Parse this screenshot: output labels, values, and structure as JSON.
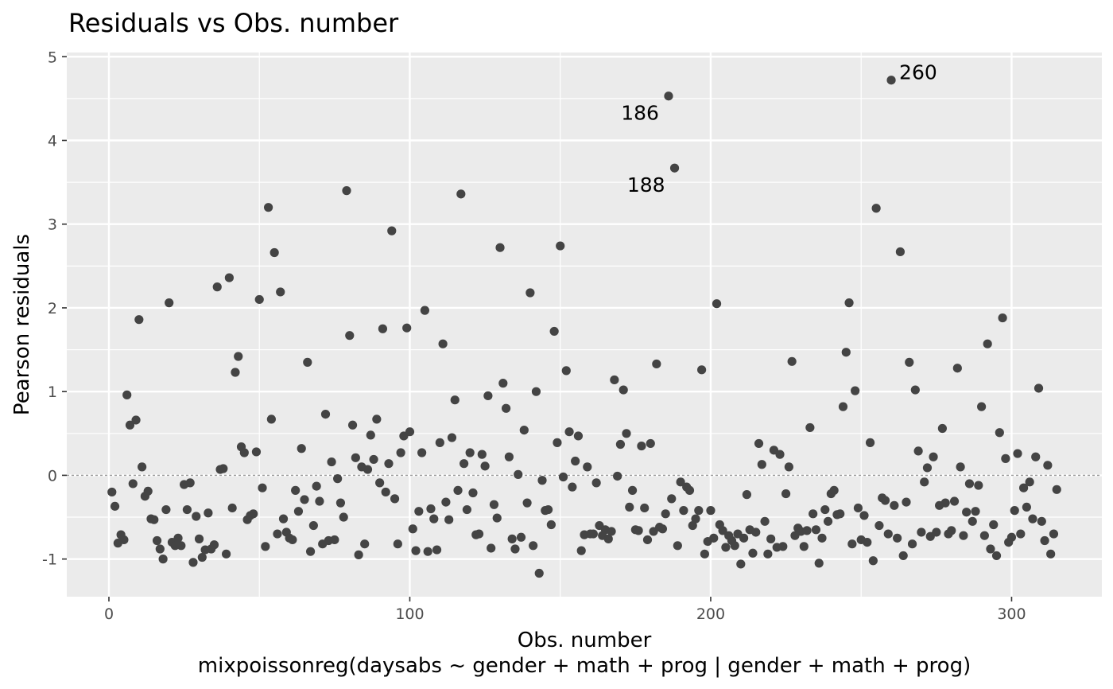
{
  "chart_data": {
    "type": "scatter",
    "title": "Residuals vs Obs. number",
    "xlabel": "Obs. number",
    "ylabel": "Pearson residuals",
    "caption": "mixpoissonreg(daysabs ~ gender + math + prog | gender + math + prog)",
    "xlim": [
      -14,
      330
    ],
    "ylim": [
      -1.45,
      5.05
    ],
    "x_ticks": [
      0,
      100,
      200,
      300
    ],
    "y_ticks": [
      -1,
      0,
      1,
      2,
      3,
      4,
      5
    ],
    "x_tick_labels": [
      "0",
      "100",
      "200",
      "300"
    ],
    "y_tick_labels": [
      "-1",
      "0",
      "1",
      "2",
      "3",
      "4",
      "5"
    ],
    "reference_line": 0,
    "grid": true,
    "panel_color": "#ebebeb",
    "point_color": "#444444",
    "points": [
      [
        1,
        -0.2
      ],
      [
        2,
        -0.37
      ],
      [
        3,
        -0.81
      ],
      [
        4,
        -0.71
      ],
      [
        5,
        -0.77
      ],
      [
        6,
        0.96
      ],
      [
        7,
        0.6
      ],
      [
        8,
        -0.1
      ],
      [
        9,
        0.66
      ],
      [
        10,
        1.86
      ],
      [
        11,
        0.1
      ],
      [
        12,
        -0.25
      ],
      [
        13,
        -0.19
      ],
      [
        14,
        -0.52
      ],
      [
        15,
        -0.53
      ],
      [
        16,
        -0.78
      ],
      [
        17,
        -0.88
      ],
      [
        18,
        -1.0
      ],
      [
        19,
        -0.41
      ],
      [
        20,
        2.06
      ],
      [
        21,
        -0.8
      ],
      [
        22,
        -0.84
      ],
      [
        23,
        -0.75
      ],
      [
        24,
        -0.84
      ],
      [
        25,
        -0.11
      ],
      [
        26,
        -0.41
      ],
      [
        27,
        -0.09
      ],
      [
        28,
        -1.04
      ],
      [
        29,
        -0.49
      ],
      [
        30,
        -0.76
      ],
      [
        31,
        -0.98
      ],
      [
        32,
        -0.89
      ],
      [
        33,
        -0.45
      ],
      [
        34,
        -0.88
      ],
      [
        35,
        -0.83
      ],
      [
        36,
        2.25
      ],
      [
        37,
        0.07
      ],
      [
        38,
        0.08
      ],
      [
        39,
        -0.94
      ],
      [
        40,
        2.36
      ],
      [
        41,
        -0.39
      ],
      [
        42,
        1.23
      ],
      [
        43,
        1.42
      ],
      [
        44,
        0.34
      ],
      [
        45,
        0.27
      ],
      [
        46,
        -0.53
      ],
      [
        47,
        -0.48
      ],
      [
        48,
        -0.46
      ],
      [
        49,
        0.28
      ],
      [
        50,
        2.1
      ],
      [
        51,
        -0.15
      ],
      [
        52,
        -0.85
      ],
      [
        53,
        3.2
      ],
      [
        54,
        0.67
      ],
      [
        55,
        2.66
      ],
      [
        56,
        -0.7
      ],
      [
        57,
        2.19
      ],
      [
        58,
        -0.52
      ],
      [
        59,
        -0.68
      ],
      [
        60,
        -0.75
      ],
      [
        61,
        -0.77
      ],
      [
        62,
        -0.18
      ],
      [
        63,
        -0.43
      ],
      [
        64,
        0.32
      ],
      [
        65,
        -0.29
      ],
      [
        66,
        1.35
      ],
      [
        67,
        -0.91
      ],
      [
        68,
        -0.6
      ],
      [
        69,
        -0.13
      ],
      [
        70,
        -0.31
      ],
      [
        71,
        -0.82
      ],
      [
        72,
        0.73
      ],
      [
        73,
        -0.78
      ],
      [
        74,
        0.16
      ],
      [
        75,
        -0.77
      ],
      [
        76,
        -0.04
      ],
      [
        77,
        -0.33
      ],
      [
        78,
        -0.5
      ],
      [
        79,
        3.4
      ],
      [
        80,
        1.67
      ],
      [
        81,
        0.6
      ],
      [
        82,
        0.21
      ],
      [
        83,
        -0.95
      ],
      [
        84,
        0.1
      ],
      [
        85,
        -0.82
      ],
      [
        86,
        0.07
      ],
      [
        87,
        0.48
      ],
      [
        88,
        0.19
      ],
      [
        89,
        0.67
      ],
      [
        90,
        -0.09
      ],
      [
        91,
        1.75
      ],
      [
        92,
        -0.2
      ],
      [
        93,
        0.14
      ],
      [
        94,
        2.92
      ],
      [
        95,
        -0.28
      ],
      [
        96,
        -0.82
      ],
      [
        97,
        0.27
      ],
      [
        98,
        0.47
      ],
      [
        99,
        1.76
      ],
      [
        100,
        0.52
      ],
      [
        101,
        -0.64
      ],
      [
        102,
        -0.9
      ],
      [
        103,
        -0.43
      ],
      [
        104,
        0.27
      ],
      [
        105,
        1.97
      ],
      [
        106,
        -0.91
      ],
      [
        107,
        -0.4
      ],
      [
        108,
        -0.52
      ],
      [
        109,
        -0.89
      ],
      [
        110,
        0.39
      ],
      [
        111,
        1.57
      ],
      [
        112,
        -0.32
      ],
      [
        113,
        -0.53
      ],
      [
        114,
        0.45
      ],
      [
        115,
        0.9
      ],
      [
        116,
        -0.18
      ],
      [
        117,
        3.36
      ],
      [
        118,
        0.14
      ],
      [
        119,
        -0.41
      ],
      [
        120,
        0.27
      ],
      [
        121,
        -0.21
      ],
      [
        122,
        -0.71
      ],
      [
        123,
        -0.7
      ],
      [
        124,
        0.25
      ],
      [
        125,
        0.11
      ],
      [
        126,
        0.95
      ],
      [
        127,
        -0.87
      ],
      [
        128,
        -0.35
      ],
      [
        129,
        -0.51
      ],
      [
        130,
        2.72
      ],
      [
        131,
        1.1
      ],
      [
        132,
        0.8
      ],
      [
        133,
        0.22
      ],
      [
        134,
        -0.76
      ],
      [
        135,
        -0.88
      ],
      [
        136,
        0.01
      ],
      [
        137,
        -0.74
      ],
      [
        138,
        0.54
      ],
      [
        139,
        -0.33
      ],
      [
        140,
        2.18
      ],
      [
        141,
        -0.84
      ],
      [
        142,
        1.0
      ],
      [
        143,
        -1.17
      ],
      [
        144,
        -0.06
      ],
      [
        145,
        -0.42
      ],
      [
        146,
        -0.41
      ],
      [
        147,
        -0.59
      ],
      [
        148,
        1.72
      ],
      [
        149,
        0.39
      ],
      [
        150,
        2.74
      ],
      [
        151,
        -0.02
      ],
      [
        152,
        1.25
      ],
      [
        153,
        0.52
      ],
      [
        154,
        -0.14
      ],
      [
        155,
        0.17
      ],
      [
        156,
        0.47
      ],
      [
        157,
        -0.9
      ],
      [
        158,
        -0.71
      ],
      [
        159,
        0.1
      ],
      [
        160,
        -0.7
      ],
      [
        161,
        -0.7
      ],
      [
        162,
        -0.09
      ],
      [
        163,
        -0.6
      ],
      [
        164,
        -0.72
      ],
      [
        165,
        -0.65
      ],
      [
        166,
        -0.76
      ],
      [
        167,
        -0.67
      ],
      [
        168,
        1.14
      ],
      [
        169,
        -0.01
      ],
      [
        170,
        0.37
      ],
      [
        171,
        1.02
      ],
      [
        172,
        0.5
      ],
      [
        173,
        -0.38
      ],
      [
        174,
        -0.18
      ],
      [
        175,
        -0.65
      ],
      [
        176,
        -0.66
      ],
      [
        177,
        0.35
      ],
      [
        178,
        -0.39
      ],
      [
        179,
        -0.77
      ],
      [
        180,
        0.38
      ],
      [
        181,
        -0.67
      ],
      [
        182,
        1.33
      ],
      [
        183,
        -0.62
      ],
      [
        184,
        -0.64
      ],
      [
        185,
        -0.46
      ],
      [
        186,
        4.53
      ],
      [
        187,
        -0.28
      ],
      [
        188,
        3.67
      ],
      [
        189,
        -0.84
      ],
      [
        190,
        -0.08
      ],
      [
        191,
        -0.42
      ],
      [
        192,
        -0.14
      ],
      [
        193,
        -0.18
      ],
      [
        194,
        -0.6
      ],
      [
        195,
        -0.52
      ],
      [
        196,
        -0.42
      ],
      [
        197,
        1.26
      ],
      [
        198,
        -0.94
      ],
      [
        199,
        -0.79
      ],
      [
        200,
        -0.42
      ],
      [
        201,
        -0.75
      ],
      [
        202,
        2.05
      ],
      [
        203,
        -0.59
      ],
      [
        204,
        -0.66
      ],
      [
        205,
        -0.86
      ],
      [
        206,
        -0.72
      ],
      [
        207,
        -0.78
      ],
      [
        208,
        -0.84
      ],
      [
        209,
        -0.7
      ],
      [
        210,
        -1.06
      ],
      [
        211,
        -0.75
      ],
      [
        212,
        -0.23
      ],
      [
        213,
        -0.65
      ],
      [
        214,
        -0.93
      ],
      [
        215,
        -0.68
      ],
      [
        216,
        0.38
      ],
      [
        217,
        0.13
      ],
      [
        218,
        -0.55
      ],
      [
        219,
        -0.94
      ],
      [
        220,
        -0.76
      ],
      [
        221,
        0.3
      ],
      [
        222,
        -0.86
      ],
      [
        223,
        0.25
      ],
      [
        224,
        -0.85
      ],
      [
        225,
        -0.22
      ],
      [
        226,
        0.1
      ],
      [
        227,
        1.36
      ],
      [
        228,
        -0.72
      ],
      [
        229,
        -0.63
      ],
      [
        230,
        -0.67
      ],
      [
        231,
        -0.85
      ],
      [
        232,
        -0.66
      ],
      [
        233,
        0.57
      ],
      [
        234,
        -0.46
      ],
      [
        235,
        -0.65
      ],
      [
        236,
        -1.05
      ],
      [
        237,
        -0.75
      ],
      [
        238,
        -0.41
      ],
      [
        239,
        -0.55
      ],
      [
        240,
        -0.22
      ],
      [
        241,
        -0.18
      ],
      [
        242,
        -0.47
      ],
      [
        243,
        -0.46
      ],
      [
        244,
        0.82
      ],
      [
        245,
        1.47
      ],
      [
        246,
        2.06
      ],
      [
        247,
        -0.82
      ],
      [
        248,
        1.01
      ],
      [
        249,
        -0.39
      ],
      [
        250,
        -0.77
      ],
      [
        251,
        -0.48
      ],
      [
        252,
        -0.8
      ],
      [
        253,
        0.39
      ],
      [
        254,
        -1.02
      ],
      [
        255,
        3.19
      ],
      [
        256,
        -0.6
      ],
      [
        257,
        -0.27
      ],
      [
        258,
        -0.3
      ],
      [
        259,
        -0.7
      ],
      [
        260,
        4.72
      ],
      [
        261,
        -0.36
      ],
      [
        262,
        -0.75
      ],
      [
        263,
        2.67
      ],
      [
        264,
        -0.96
      ],
      [
        265,
        -0.32
      ],
      [
        266,
        1.35
      ],
      [
        267,
        -0.82
      ],
      [
        268,
        1.02
      ],
      [
        269,
        0.29
      ],
      [
        270,
        -0.68
      ],
      [
        271,
        -0.08
      ],
      [
        272,
        0.09
      ],
      [
        273,
        -0.73
      ],
      [
        274,
        0.22
      ],
      [
        275,
        -0.68
      ],
      [
        276,
        -0.36
      ],
      [
        277,
        0.56
      ],
      [
        278,
        -0.33
      ],
      [
        279,
        -0.7
      ],
      [
        280,
        -0.66
      ],
      [
        281,
        -0.31
      ],
      [
        282,
        1.28
      ],
      [
        283,
        0.1
      ],
      [
        284,
        -0.72
      ],
      [
        285,
        -0.44
      ],
      [
        286,
        -0.1
      ],
      [
        287,
        -0.55
      ],
      [
        288,
        -0.43
      ],
      [
        289,
        -0.12
      ],
      [
        290,
        0.82
      ],
      [
        291,
        -0.72
      ],
      [
        292,
        1.57
      ],
      [
        293,
        -0.88
      ],
      [
        294,
        -0.59
      ],
      [
        295,
        -0.96
      ],
      [
        296,
        0.51
      ],
      [
        297,
        1.88
      ],
      [
        298,
        0.2
      ],
      [
        299,
        -0.8
      ],
      [
        300,
        -0.74
      ],
      [
        301,
        -0.42
      ],
      [
        302,
        0.26
      ],
      [
        303,
        -0.7
      ],
      [
        304,
        -0.15
      ],
      [
        305,
        -0.38
      ],
      [
        306,
        -0.08
      ],
      [
        307,
        -0.52
      ],
      [
        308,
        0.22
      ],
      [
        309,
        1.04
      ],
      [
        310,
        -0.55
      ],
      [
        311,
        -0.78
      ],
      [
        312,
        0.12
      ],
      [
        313,
        -0.94
      ],
      [
        314,
        -0.7
      ],
      [
        315,
        -0.17
      ]
    ],
    "annotations": [
      {
        "label": "186",
        "x": 186,
        "y": 4.53,
        "side": "left"
      },
      {
        "label": "188",
        "x": 188,
        "y": 3.67,
        "side": "left"
      },
      {
        "label": "260",
        "x": 260,
        "y": 4.72,
        "side": "right"
      }
    ]
  }
}
